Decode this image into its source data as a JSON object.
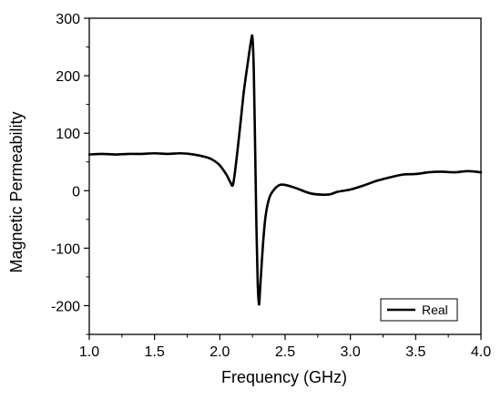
{
  "chart_data": {
    "type": "line",
    "title": "",
    "xlabel": "Frequency (GHz)",
    "ylabel": "Magnetic Permeability",
    "xlim": [
      1.0,
      4.0
    ],
    "ylim": [
      -250,
      300
    ],
    "xticks": [
      1.0,
      1.5,
      2.0,
      2.5,
      3.0,
      3.5,
      4.0
    ],
    "xtick_labels": [
      "1.0",
      "1.5",
      "2.0",
      "2.5",
      "3.0",
      "3.5",
      "4.0"
    ],
    "yticks": [
      -200,
      -100,
      0,
      100,
      200,
      300
    ],
    "ytick_labels": [
      "-200",
      "-100",
      "0",
      "100",
      "200",
      "300"
    ],
    "grid": false,
    "legend_position": "bottom-right",
    "series": [
      {
        "name": "Real",
        "color": "#000000",
        "x": [
          1.0,
          1.1,
          1.2,
          1.3,
          1.4,
          1.5,
          1.6,
          1.7,
          1.8,
          1.9,
          1.95,
          2.0,
          2.05,
          2.08,
          2.1,
          2.12,
          2.15,
          2.18,
          2.2,
          2.22,
          2.24,
          2.25,
          2.26,
          2.27,
          2.28,
          2.29,
          2.3,
          2.31,
          2.33,
          2.35,
          2.38,
          2.42,
          2.46,
          2.5,
          2.55,
          2.6,
          2.7,
          2.8,
          2.85,
          2.9,
          3.0,
          3.1,
          3.2,
          3.3,
          3.4,
          3.5,
          3.6,
          3.7,
          3.8,
          3.9,
          4.0
        ],
        "y": [
          63,
          64,
          63,
          64,
          64,
          65,
          64,
          65,
          63,
          58,
          53,
          44,
          28,
          15,
          10,
          40,
          100,
          165,
          200,
          232,
          262,
          266,
          210,
          80,
          -60,
          -160,
          -198,
          -165,
          -95,
          -45,
          -12,
          3,
          10,
          10,
          7,
          3,
          -5,
          -7,
          -6,
          -2,
          2,
          9,
          17,
          23,
          28,
          29,
          32,
          33,
          32,
          34,
          32
        ]
      }
    ]
  }
}
